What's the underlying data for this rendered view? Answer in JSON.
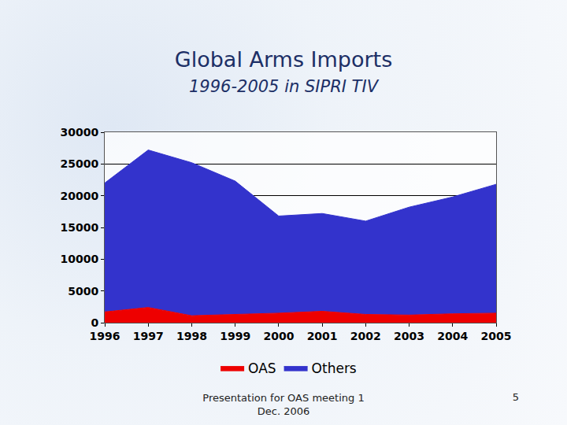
{
  "chart_data": {
    "type": "area",
    "title": "Global Arms Imports",
    "subtitle": "1996-2005 in SIPRI TIV",
    "x": [
      1996,
      1997,
      1998,
      1999,
      2000,
      2001,
      2002,
      2003,
      2004,
      2005
    ],
    "series": [
      {
        "name": "OAS",
        "color": "#ee0000",
        "values": [
          1700,
          2400,
          1100,
          1300,
          1500,
          1800,
          1300,
          1200,
          1400,
          1500
        ]
      },
      {
        "name": "Others",
        "color": "#3333cc",
        "values": [
          20300,
          24800,
          24100,
          21000,
          15300,
          15400,
          14700,
          17000,
          18400,
          20300
        ]
      }
    ],
    "stacked": true,
    "xlim": [
      1996,
      2005
    ],
    "xticks": [
      1996,
      1997,
      1998,
      1999,
      2000,
      2001,
      2002,
      2003,
      2004,
      2005
    ],
    "ylim": [
      0,
      30000
    ],
    "yticks": [
      0,
      5000,
      10000,
      15000,
      20000,
      25000,
      30000
    ],
    "grid": true,
    "legend": "bottom"
  },
  "slide": {
    "footer": "Presentation for OAS meeting 1 Dec. 2006",
    "page_number": 5
  }
}
